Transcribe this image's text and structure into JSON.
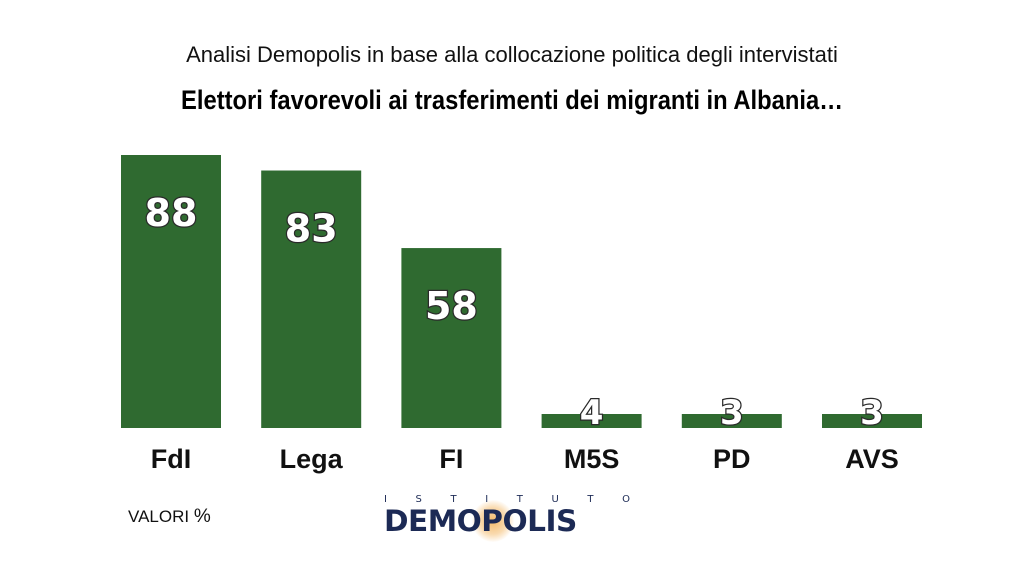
{
  "header": {
    "subtitle": "Analisi Demopolis in base alla collocazione politica degli intervistati",
    "title": "Elettori favorevoli ai trasferimenti dei migranti in Albania…"
  },
  "chart_data": {
    "type": "bar",
    "title": "Elettori favorevoli ai trasferimenti dei migranti in Albania…",
    "subtitle": "Analisi Demopolis in base alla collocazione politica degli intervistati",
    "categories": [
      "FdI",
      "Lega",
      "FI",
      "M5S",
      "PD",
      "AVS"
    ],
    "values": [
      88,
      83,
      58,
      4,
      3,
      3
    ],
    "value_labels": [
      "88",
      "83",
      "58",
      "4",
      "3",
      "3"
    ],
    "ylim": [
      0,
      88
    ],
    "bar_color": "#2f6a30",
    "grid": false,
    "legend": "none"
  },
  "footer": {
    "unit_label": "VALORI",
    "unit_symbol": "%"
  },
  "logo": {
    "top_text": [
      "I",
      "S",
      "T",
      "I",
      "T",
      "U",
      "T",
      "O"
    ],
    "brand": "DEMOPOLIS",
    "brand_color": "#1c2a55",
    "accent_color": "#f2ae50"
  }
}
